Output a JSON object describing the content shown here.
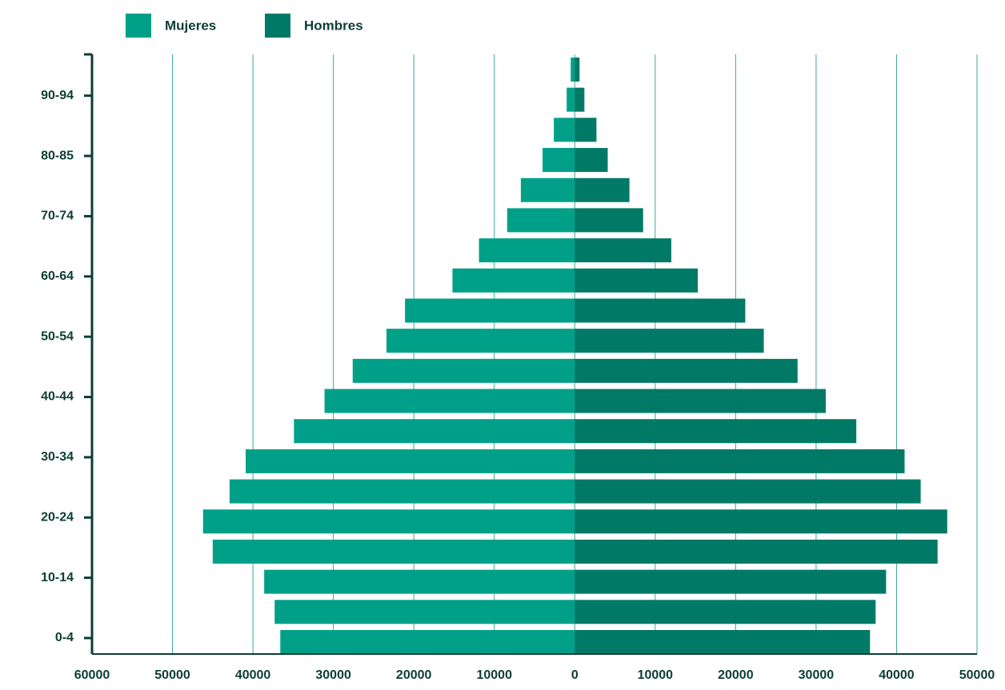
{
  "chart_data": {
    "type": "pyramid",
    "legend": "top-left",
    "grid": true,
    "categories": [
      "0-4",
      null,
      "10-14",
      null,
      "20-24",
      null,
      "30-34",
      null,
      "40-44",
      null,
      "50-54",
      null,
      "60-64",
      null,
      "70-74",
      null,
      "80-85",
      null,
      "90-94",
      null
    ],
    "series": [
      {
        "name": "Mujeres",
        "color": "#00a088",
        "side": "left",
        "values": [
          36600,
          37300,
          38600,
          45000,
          46200,
          42900,
          40900,
          34900,
          31100,
          27600,
          23400,
          21100,
          15200,
          11900,
          8400,
          6700,
          4000,
          2600,
          1000,
          500
        ]
      },
      {
        "name": "Hombres",
        "color": "#007a66",
        "side": "right",
        "values": [
          36700,
          37400,
          38700,
          45100,
          46300,
          43000,
          41000,
          35000,
          31200,
          27700,
          23500,
          21200,
          15300,
          12000,
          8500,
          6800,
          4100,
          2700,
          1200,
          600
        ]
      }
    ],
    "xlim": [
      -60000,
      50000
    ],
    "xticks": [
      {
        "value": -60000,
        "label": "60000"
      },
      {
        "value": -50000,
        "label": "50000"
      },
      {
        "value": -40000,
        "label": "40000"
      },
      {
        "value": -30000,
        "label": "30000"
      },
      {
        "value": -20000,
        "label": "20000"
      },
      {
        "value": -10000,
        "label": "10000"
      },
      0,
      10000,
      20000,
      30000,
      40000,
      50000
    ]
  }
}
